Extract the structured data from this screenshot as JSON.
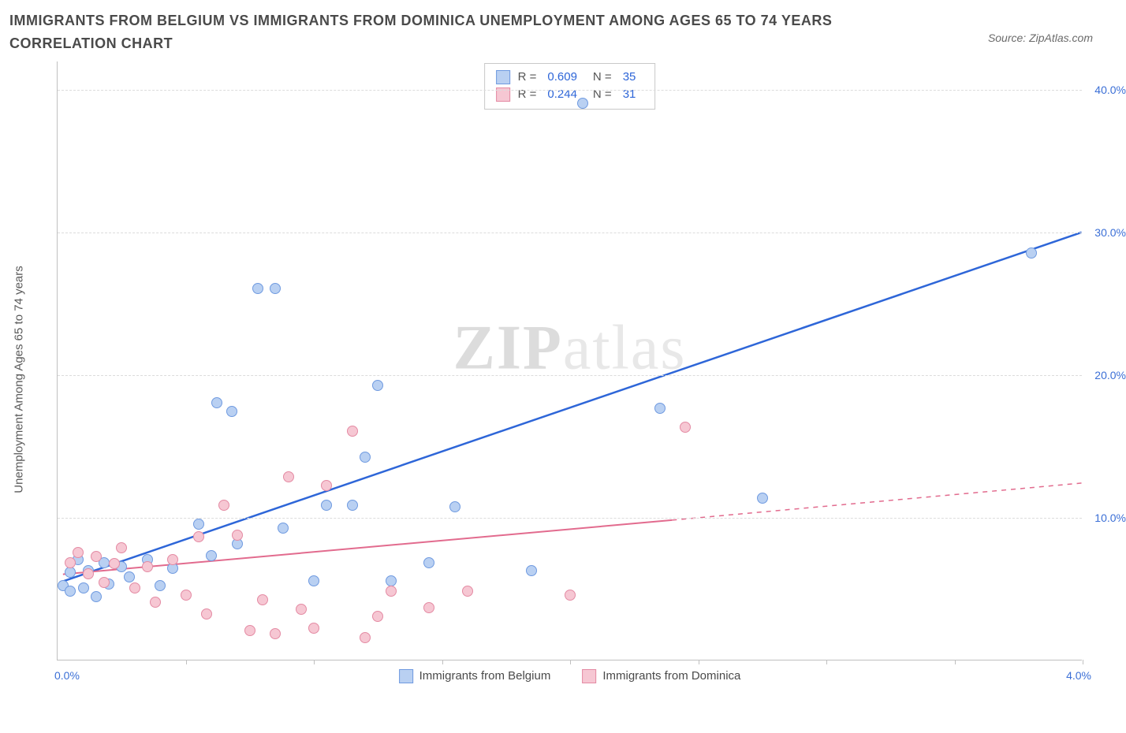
{
  "title": "IMMIGRANTS FROM BELGIUM VS IMMIGRANTS FROM DOMINICA UNEMPLOYMENT AMONG AGES 65 TO 74 YEARS CORRELATION CHART",
  "source": "Source: ZipAtlas.com",
  "ylabel": "Unemployment Among Ages 65 to 74 years",
  "watermark_bold": "ZIP",
  "watermark_rest": "atlas",
  "chart": {
    "type": "scatter",
    "xlim": [
      0,
      4.0
    ],
    "ylim": [
      0,
      42
    ],
    "y_ticks": [
      10,
      20,
      30,
      40
    ],
    "y_tick_labels": [
      "10.0%",
      "20.0%",
      "30.0%",
      "40.0%"
    ],
    "x_ticks": [
      0.5,
      1.0,
      1.5,
      2.0,
      2.5,
      3.0,
      3.5,
      4.0
    ],
    "x_origin_label": "0.0%",
    "x_end_label": "4.0%",
    "grid_color": "#dcdcdc",
    "axis_color": "#c0c0c0",
    "background": "#ffffff",
    "series": [
      {
        "name": "Immigrants from Belgium",
        "color_fill": "#b9d0f2",
        "color_stroke": "#6f9ae0",
        "r_label": "R =",
        "r_value": "0.609",
        "n_label": "N =",
        "n_value": "35",
        "trend": {
          "x1": 0.02,
          "y1": 5.5,
          "x2": 4.0,
          "y2": 30.0,
          "color": "#2e66d8",
          "width": 2.5,
          "dash": ""
        },
        "points": [
          [
            0.02,
            5.2
          ],
          [
            0.05,
            4.8
          ],
          [
            0.05,
            6.1
          ],
          [
            0.08,
            7.0
          ],
          [
            0.1,
            5.0
          ],
          [
            0.12,
            6.2
          ],
          [
            0.15,
            4.4
          ],
          [
            0.18,
            6.8
          ],
          [
            0.2,
            5.3
          ],
          [
            0.25,
            6.5
          ],
          [
            0.28,
            5.8
          ],
          [
            0.35,
            7.0
          ],
          [
            0.4,
            5.2
          ],
          [
            0.45,
            6.4
          ],
          [
            0.55,
            9.5
          ],
          [
            0.6,
            7.3
          ],
          [
            0.62,
            18.0
          ],
          [
            0.68,
            17.4
          ],
          [
            0.7,
            8.1
          ],
          [
            0.78,
            26.0
          ],
          [
            0.85,
            26.0
          ],
          [
            0.88,
            9.2
          ],
          [
            1.0,
            5.5
          ],
          [
            1.05,
            10.8
          ],
          [
            1.15,
            10.8
          ],
          [
            1.2,
            14.2
          ],
          [
            1.25,
            19.2
          ],
          [
            1.3,
            5.5
          ],
          [
            1.45,
            6.8
          ],
          [
            1.55,
            10.7
          ],
          [
            1.85,
            6.2
          ],
          [
            2.05,
            39.0
          ],
          [
            2.35,
            17.6
          ],
          [
            2.75,
            11.3
          ],
          [
            3.8,
            28.5
          ]
        ]
      },
      {
        "name": "Immigrants from Dominica",
        "color_fill": "#f6c7d3",
        "color_stroke": "#e48aa3",
        "r_label": "R =",
        "r_value": "0.244",
        "n_label": "N =",
        "n_value": "31",
        "trend": {
          "x1": 0.02,
          "y1": 6.0,
          "x2": 2.4,
          "y2": 9.8,
          "color": "#e26b8e",
          "width": 2,
          "dash": "",
          "ext_x2": 4.0,
          "ext_y2": 12.4,
          "ext_dash": "6,6"
        },
        "points": [
          [
            0.05,
            6.8
          ],
          [
            0.08,
            7.5
          ],
          [
            0.12,
            6.0
          ],
          [
            0.15,
            7.2
          ],
          [
            0.18,
            5.4
          ],
          [
            0.22,
            6.7
          ],
          [
            0.25,
            7.8
          ],
          [
            0.3,
            5.0
          ],
          [
            0.35,
            6.5
          ],
          [
            0.38,
            4.0
          ],
          [
            0.45,
            7.0
          ],
          [
            0.5,
            4.5
          ],
          [
            0.55,
            8.6
          ],
          [
            0.58,
            3.2
          ],
          [
            0.65,
            10.8
          ],
          [
            0.7,
            8.7
          ],
          [
            0.75,
            2.0
          ],
          [
            0.8,
            4.2
          ],
          [
            0.85,
            1.8
          ],
          [
            0.9,
            12.8
          ],
          [
            0.95,
            3.5
          ],
          [
            1.0,
            2.2
          ],
          [
            1.05,
            12.2
          ],
          [
            1.15,
            16.0
          ],
          [
            1.2,
            1.5
          ],
          [
            1.25,
            3.0
          ],
          [
            1.3,
            4.8
          ],
          [
            1.45,
            3.6
          ],
          [
            1.6,
            4.8
          ],
          [
            2.0,
            4.5
          ],
          [
            2.45,
            16.3
          ]
        ]
      }
    ]
  },
  "bottom_legend": [
    {
      "label": "Immigrants from Belgium",
      "fill": "#b9d0f2",
      "stroke": "#6f9ae0"
    },
    {
      "label": "Immigrants from Dominica",
      "fill": "#f6c7d3",
      "stroke": "#e48aa3"
    }
  ]
}
